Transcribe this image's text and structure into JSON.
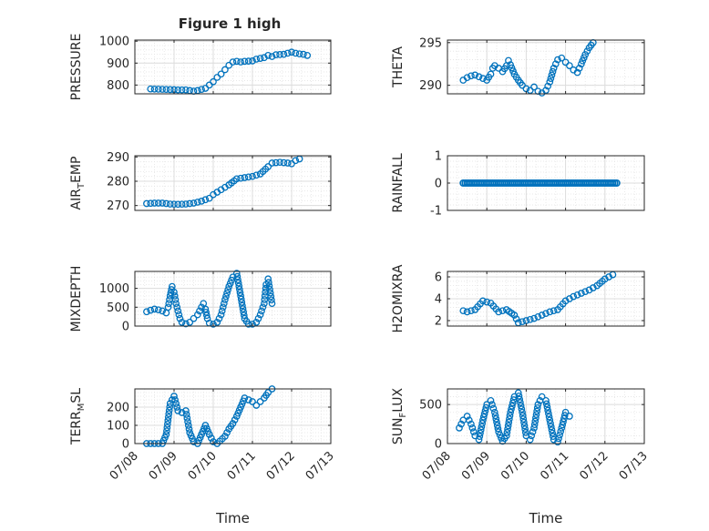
{
  "figure_title": "Figure 1 high",
  "chart_data": [
    {
      "id": "pressure",
      "type": "scatter",
      "title": "Figure 1 high",
      "ylabel_parts": [
        "PRESSURE"
      ],
      "ylim": [
        760,
        1005
      ],
      "yticks": [
        800,
        900,
        1000
      ],
      "xlim": [
        "07/08",
        "07/13"
      ],
      "xticks": [
        "07/08",
        "07/09",
        "07/10",
        "07/11",
        "07/12",
        "07/13"
      ],
      "xlabel": "",
      "grid": true,
      "points": [
        [
          "07/08.4",
          782
        ],
        [
          "07/08.8",
          780
        ],
        [
          "07/09.1",
          778
        ],
        [
          "07/09.3",
          778
        ],
        [
          "07/09.5",
          772
        ],
        [
          "07/09.6",
          775
        ],
        [
          "07/09.8",
          785
        ],
        [
          "07/09.9",
          800
        ],
        [
          "07/10.0",
          815
        ],
        [
          "07/10.1",
          835
        ],
        [
          "07/10.2",
          850
        ],
        [
          "07/10.3",
          870
        ],
        [
          "07/10.4",
          890
        ],
        [
          "07/10.5",
          905
        ],
        [
          "07/10.6",
          908
        ],
        [
          "07/10.7",
          905
        ],
        [
          "07/10.8",
          908
        ],
        [
          "07/11.0",
          910
        ],
        [
          "07/11.1",
          918
        ],
        [
          "07/11.3",
          925
        ],
        [
          "07/11.4",
          935
        ],
        [
          "07/11.5",
          930
        ],
        [
          "07/11.6",
          938
        ],
        [
          "07/11.8",
          940
        ],
        [
          "07/11.9",
          945
        ],
        [
          "07/12.0",
          950
        ],
        [
          "07/12.1",
          945
        ],
        [
          "07/12.2",
          942
        ],
        [
          "07/12.3",
          940
        ],
        [
          "07/12.4",
          935
        ]
      ]
    },
    {
      "id": "theta",
      "type": "scatter",
      "title": "",
      "ylabel_parts": [
        "THETA"
      ],
      "ylim": [
        289,
        295.3
      ],
      "yticks": [
        290,
        295
      ],
      "xlim": [
        "07/08",
        "07/13"
      ],
      "xticks": [
        "07/08",
        "07/09",
        "07/10",
        "07/11",
        "07/12",
        "07/13"
      ],
      "xlabel": "",
      "grid": true,
      "points": [
        [
          "07/08.4",
          290.6
        ],
        [
          "07/08.5",
          290.9
        ],
        [
          "07/08.6",
          291.1
        ],
        [
          "07/08.7",
          291.2
        ],
        [
          "07/08.8",
          291.0
        ],
        [
          "07/08.9",
          290.8
        ],
        [
          "07/09.0",
          290.6
        ],
        [
          "07/09.1",
          291.3
        ],
        [
          "07/09.15",
          292.0
        ],
        [
          "07/09.2",
          292.3
        ],
        [
          "07/09.3",
          292.0
        ],
        [
          "07/09.4",
          291.6
        ],
        [
          "07/09.5",
          292.3
        ],
        [
          "07/09.55",
          292.9
        ],
        [
          "07/09.6",
          292.4
        ],
        [
          "07/09.7",
          291.3
        ],
        [
          "07/09.8",
          290.6
        ],
        [
          "07/09.9",
          290.0
        ],
        [
          "07/10.0",
          289.6
        ],
        [
          "07/10.1",
          289.4
        ],
        [
          "07/10.2",
          289.8
        ],
        [
          "07/10.3",
          289.3
        ],
        [
          "07/10.4",
          289.1
        ],
        [
          "07/10.5",
          289.4
        ],
        [
          "07/10.6",
          290.4
        ],
        [
          "07/10.7",
          292.0
        ],
        [
          "07/10.8",
          293.0
        ],
        [
          "07/10.9",
          293.2
        ],
        [
          "07/11.0",
          292.7
        ],
        [
          "07/11.1",
          292.3
        ],
        [
          "07/11.2",
          291.8
        ],
        [
          "07/11.3",
          291.5
        ],
        [
          "07/11.4",
          292.5
        ],
        [
          "07/11.5",
          293.6
        ],
        [
          "07/11.6",
          294.4
        ],
        [
          "07/11.7",
          295.0
        ]
      ]
    },
    {
      "id": "air_temp",
      "type": "scatter",
      "title": "",
      "ylabel_parts": [
        "AIR",
        "T",
        "EMP"
      ],
      "ylim": [
        268,
        290.5
      ],
      "yticks": [
        270,
        280,
        290
      ],
      "xlim": [
        "07/08",
        "07/13"
      ],
      "xticks": [
        "07/08",
        "07/09",
        "07/10",
        "07/11",
        "07/12",
        "07/13"
      ],
      "xlabel": "",
      "grid": true,
      "points": [
        [
          "07/08.3",
          270.8
        ],
        [
          "07/08.5",
          271.0
        ],
        [
          "07/08.7",
          271.0
        ],
        [
          "07/08.9",
          270.6
        ],
        [
          "07/09.1",
          270.5
        ],
        [
          "07/09.3",
          270.6
        ],
        [
          "07/09.5",
          271.0
        ],
        [
          "07/09.7",
          271.8
        ],
        [
          "07/09.9",
          273.0
        ],
        [
          "07/10.0",
          274.5
        ],
        [
          "07/10.2",
          276.5
        ],
        [
          "07/10.4",
          278.5
        ],
        [
          "07/10.6",
          281.0
        ],
        [
          "07/10.8",
          281.5
        ],
        [
          "07/11.0",
          282.0
        ],
        [
          "07/11.2",
          283.0
        ],
        [
          "07/11.4",
          286.0
        ],
        [
          "07/11.5",
          287.5
        ],
        [
          "07/11.7",
          287.8
        ],
        [
          "07/11.9",
          287.5
        ],
        [
          "07/12.0",
          287.2
        ],
        [
          "07/12.1",
          288.5
        ],
        [
          "07/12.2",
          289.2
        ]
      ]
    },
    {
      "id": "rainfall",
      "type": "scatter",
      "title": "",
      "ylabel_parts": [
        "RAINFALL"
      ],
      "ylim": [
        -1,
        1
      ],
      "yticks": [
        -1,
        0,
        1
      ],
      "xlim": [
        "07/08",
        "07/13"
      ],
      "xticks": [
        "07/08",
        "07/09",
        "07/10",
        "07/11",
        "07/12",
        "07/13"
      ],
      "xlabel": "",
      "grid": true,
      "points": [
        [
          "07/08.4",
          0
        ],
        [
          "07/12.3",
          0
        ]
      ]
    },
    {
      "id": "mixdepth",
      "type": "scatter",
      "title": "",
      "ylabel_parts": [
        "MIXDEPTH"
      ],
      "ylim": [
        0,
        1450
      ],
      "yticks": [
        0,
        500,
        1000
      ],
      "xlim": [
        "07/08",
        "07/13"
      ],
      "xticks": [
        "07/08",
        "07/09",
        "07/10",
        "07/11",
        "07/12",
        "07/13"
      ],
      "xlabel": "",
      "grid": true,
      "points": [
        [
          "07/08.3",
          380
        ],
        [
          "07/08.4",
          420
        ],
        [
          "07/08.5",
          450
        ],
        [
          "07/08.6",
          430
        ],
        [
          "07/08.7",
          400
        ],
        [
          "07/08.8",
          350
        ],
        [
          "07/08.85",
          500
        ],
        [
          "07/08.9",
          800
        ],
        [
          "07/08.95",
          1050
        ],
        [
          "07/09.0",
          900
        ],
        [
          "07/09.05",
          600
        ],
        [
          "07/09.1",
          400
        ],
        [
          "07/09.15",
          200
        ],
        [
          "07/09.2",
          100
        ],
        [
          "07/09.3",
          60
        ],
        [
          "07/09.4",
          100
        ],
        [
          "07/09.5",
          200
        ],
        [
          "07/09.6",
          300
        ],
        [
          "07/09.7",
          500
        ],
        [
          "07/09.75",
          600
        ],
        [
          "07/09.8",
          450
        ],
        [
          "07/09.85",
          200
        ],
        [
          "07/09.9",
          80
        ],
        [
          "07/10.0",
          50
        ],
        [
          "07/10.1",
          100
        ],
        [
          "07/10.2",
          300
        ],
        [
          "07/10.3",
          700
        ],
        [
          "07/10.4",
          1050
        ],
        [
          "07/10.5",
          1300
        ],
        [
          "07/10.6",
          1400
        ],
        [
          "07/10.7",
          800
        ],
        [
          "07/10.8",
          200
        ],
        [
          "07/10.9",
          50
        ],
        [
          "07/11.0",
          50
        ],
        [
          "07/11.1",
          100
        ],
        [
          "07/11.2",
          300
        ],
        [
          "07/11.3",
          600
        ],
        [
          "07/11.35",
          1100
        ],
        [
          "07/11.4",
          1250
        ],
        [
          "07/11.5",
          600
        ]
      ]
    },
    {
      "id": "h2omixra",
      "type": "scatter",
      "title": "",
      "ylabel_parts": [
        "H2OMIXRA"
      ],
      "ylim": [
        1.5,
        6.5
      ],
      "yticks": [
        2,
        4,
        6
      ],
      "xlim": [
        "07/08",
        "07/13"
      ],
      "xticks": [
        "07/08",
        "07/09",
        "07/10",
        "07/11",
        "07/12",
        "07/13"
      ],
      "xlabel": "",
      "grid": true,
      "points": [
        [
          "07/08.4",
          2.9
        ],
        [
          "07/08.5",
          2.8
        ],
        [
          "07/08.7",
          3.0
        ],
        [
          "07/08.9",
          3.8
        ],
        [
          "07/09.1",
          3.6
        ],
        [
          "07/09.3",
          2.8
        ],
        [
          "07/09.5",
          3.0
        ],
        [
          "07/09.7",
          2.5
        ],
        [
          "07/09.8",
          1.8
        ],
        [
          "07/10.0",
          2.0
        ],
        [
          "07/10.2",
          2.2
        ],
        [
          "07/10.4",
          2.5
        ],
        [
          "07/10.6",
          2.8
        ],
        [
          "07/10.8",
          3.0
        ],
        [
          "07/11.0",
          3.8
        ],
        [
          "07/11.2",
          4.2
        ],
        [
          "07/11.4",
          4.5
        ],
        [
          "07/11.6",
          4.8
        ],
        [
          "07/11.8",
          5.2
        ],
        [
          "07/12.0",
          5.8
        ],
        [
          "07/12.2",
          6.2
        ]
      ]
    },
    {
      "id": "terr_msl",
      "type": "scatter",
      "title": "",
      "ylabel_parts": [
        "TERR",
        "M",
        "SL"
      ],
      "ylim": [
        0,
        300
      ],
      "yticks": [
        0,
        100,
        200
      ],
      "xlim": [
        "07/08",
        "07/13"
      ],
      "xticks": [
        "07/08",
        "07/09",
        "07/10",
        "07/11",
        "07/12",
        "07/13"
      ],
      "xlabel": "Time",
      "grid": true,
      "points": [
        [
          "07/08.3",
          0
        ],
        [
          "07/08.5",
          0
        ],
        [
          "07/08.7",
          0
        ],
        [
          "07/08.8",
          50
        ],
        [
          "07/08.9",
          220
        ],
        [
          "07/09.0",
          260
        ],
        [
          "07/09.1",
          180
        ],
        [
          "07/09.2",
          170
        ],
        [
          "07/09.3",
          180
        ],
        [
          "07/09.4",
          60
        ],
        [
          "07/09.5",
          10
        ],
        [
          "07/09.6",
          0
        ],
        [
          "07/09.7",
          50
        ],
        [
          "07/09.8",
          100
        ],
        [
          "07/09.9",
          50
        ],
        [
          "07/10.0",
          10
        ],
        [
          "07/10.1",
          0
        ],
        [
          "07/10.3",
          40
        ],
        [
          "07/10.4",
          80
        ],
        [
          "07/10.5",
          110
        ],
        [
          "07/10.6",
          150
        ],
        [
          "07/10.7",
          200
        ],
        [
          "07/10.8",
          250
        ],
        [
          "07/10.9",
          240
        ],
        [
          "07/11.0",
          230
        ],
        [
          "07/11.1",
          210
        ],
        [
          "07/11.2",
          230
        ],
        [
          "07/11.3",
          250
        ],
        [
          "07/11.4",
          280
        ],
        [
          "07/11.5",
          300
        ]
      ]
    },
    {
      "id": "sun_flux",
      "type": "scatter",
      "title": "",
      "ylabel_parts": [
        "SUN",
        "F",
        "LUX"
      ],
      "ylim": [
        0,
        700
      ],
      "yticks": [
        0,
        500
      ],
      "xlim": [
        "07/08",
        "07/13"
      ],
      "xticks": [
        "07/08",
        "07/09",
        "07/10",
        "07/11",
        "07/12",
        "07/13"
      ],
      "xlabel": "Time",
      "grid": true,
      "points": [
        [
          "07/08.3",
          200
        ],
        [
          "07/08.4",
          300
        ],
        [
          "07/08.5",
          350
        ],
        [
          "07/08.6",
          250
        ],
        [
          "07/08.7",
          100
        ],
        [
          "07/08.8",
          50
        ],
        [
          "07/08.9",
          300
        ],
        [
          "07/09.0",
          500
        ],
        [
          "07/09.1",
          550
        ],
        [
          "07/09.2",
          400
        ],
        [
          "07/09.3",
          150
        ],
        [
          "07/09.4",
          30
        ],
        [
          "07/09.5",
          100
        ],
        [
          "07/09.6",
          400
        ],
        [
          "07/09.7",
          600
        ],
        [
          "07/09.8",
          650
        ],
        [
          "07/09.9",
          400
        ],
        [
          "07/10.0",
          100
        ],
        [
          "07/10.1",
          50
        ],
        [
          "07/10.2",
          200
        ],
        [
          "07/10.3",
          500
        ],
        [
          "07/10.4",
          600
        ],
        [
          "07/10.5",
          550
        ],
        [
          "07/10.6",
          300
        ],
        [
          "07/10.7",
          50
        ],
        [
          "07/10.8",
          20
        ],
        [
          "07/10.9",
          200
        ],
        [
          "07/11.0",
          400
        ],
        [
          "07/11.1",
          350
        ]
      ]
    }
  ],
  "colors": {
    "marker": "#0072bd",
    "axis": "#262626",
    "grid": "#dcdcdc"
  }
}
